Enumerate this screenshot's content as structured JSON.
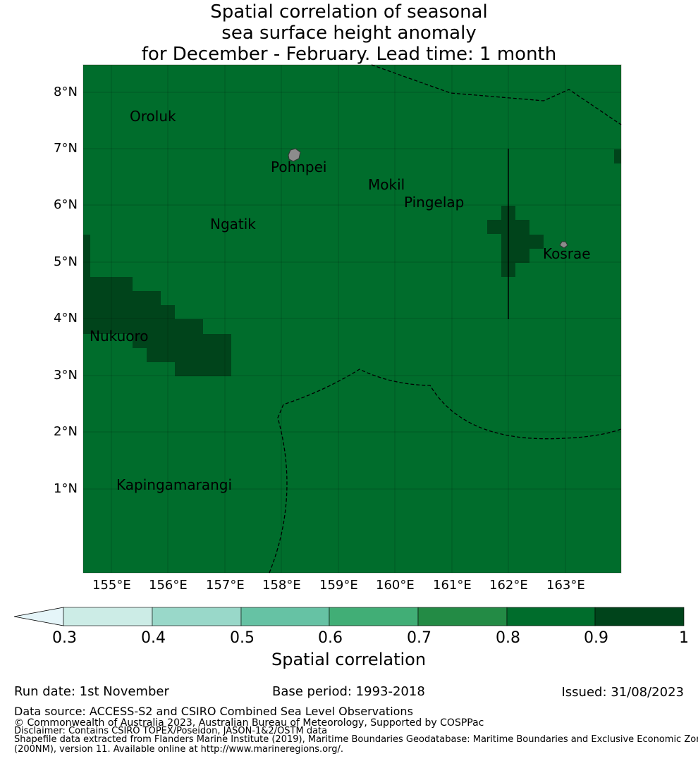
{
  "title": {
    "line1": "Spatial correlation of seasonal",
    "line2": "sea surface height anomaly",
    "line3": "for December - February. Lead time: 1 month"
  },
  "map": {
    "lat_labels": [
      "8°N",
      "7°N",
      "6°N",
      "5°N",
      "4°N",
      "3°N",
      "2°N",
      "1°N"
    ],
    "lon_labels": [
      "155°E",
      "156°E",
      "157°E",
      "158°E",
      "159°E",
      "160°E",
      "161°E",
      "162°E",
      "163°E"
    ],
    "places": {
      "oroluk": "Oroluk",
      "pohnpei": "Pohnpei",
      "mokil": "Mokil",
      "pingelap": "Pingelap",
      "ngatik": "Ngatik",
      "kosrae": "Kosrae",
      "nukuoro": "Nukuoro",
      "kapingamarangi": "Kapingamarangi"
    },
    "base_correlation": 0.85,
    "high_correlation": 0.95
  },
  "colorbar": {
    "ticks": [
      "0.3",
      "0.4",
      "0.5",
      "0.6",
      "0.7",
      "0.8",
      "0.9",
      "1"
    ],
    "label": "Spatial correlation",
    "colors": [
      "#e5f5f9",
      "#ccece6",
      "#99d8c9",
      "#66c2a4",
      "#41ae76",
      "#238b45",
      "#006d2c",
      "#00441b"
    ]
  },
  "meta": {
    "run_date": "Run date: 1st November",
    "base_period": "Base period: 1993-2018",
    "issued": "Issued: 31/08/2023"
  },
  "footer": {
    "data_source": "Data source: ACCESS-S2 and CSIRO Combined Sea Level Observations",
    "copyright": "© Commonwealth of Australia 2023, Australian Bureau of Meteorology, Supported by COSPPac",
    "disclaimer": "Disclaimer: Contains CSIRO TOPEX/Poseidon, JASON-1&2/OSTM data",
    "shapefile1": "Shapefile data extracted from Flanders Marine Institute (2019), Maritime Boundaries Geodatabase: Maritime Boundaries and Exclusive Economic Zones",
    "shapefile2": "(200NM), version 11. Available online at http://www.marineregions.org/."
  }
}
